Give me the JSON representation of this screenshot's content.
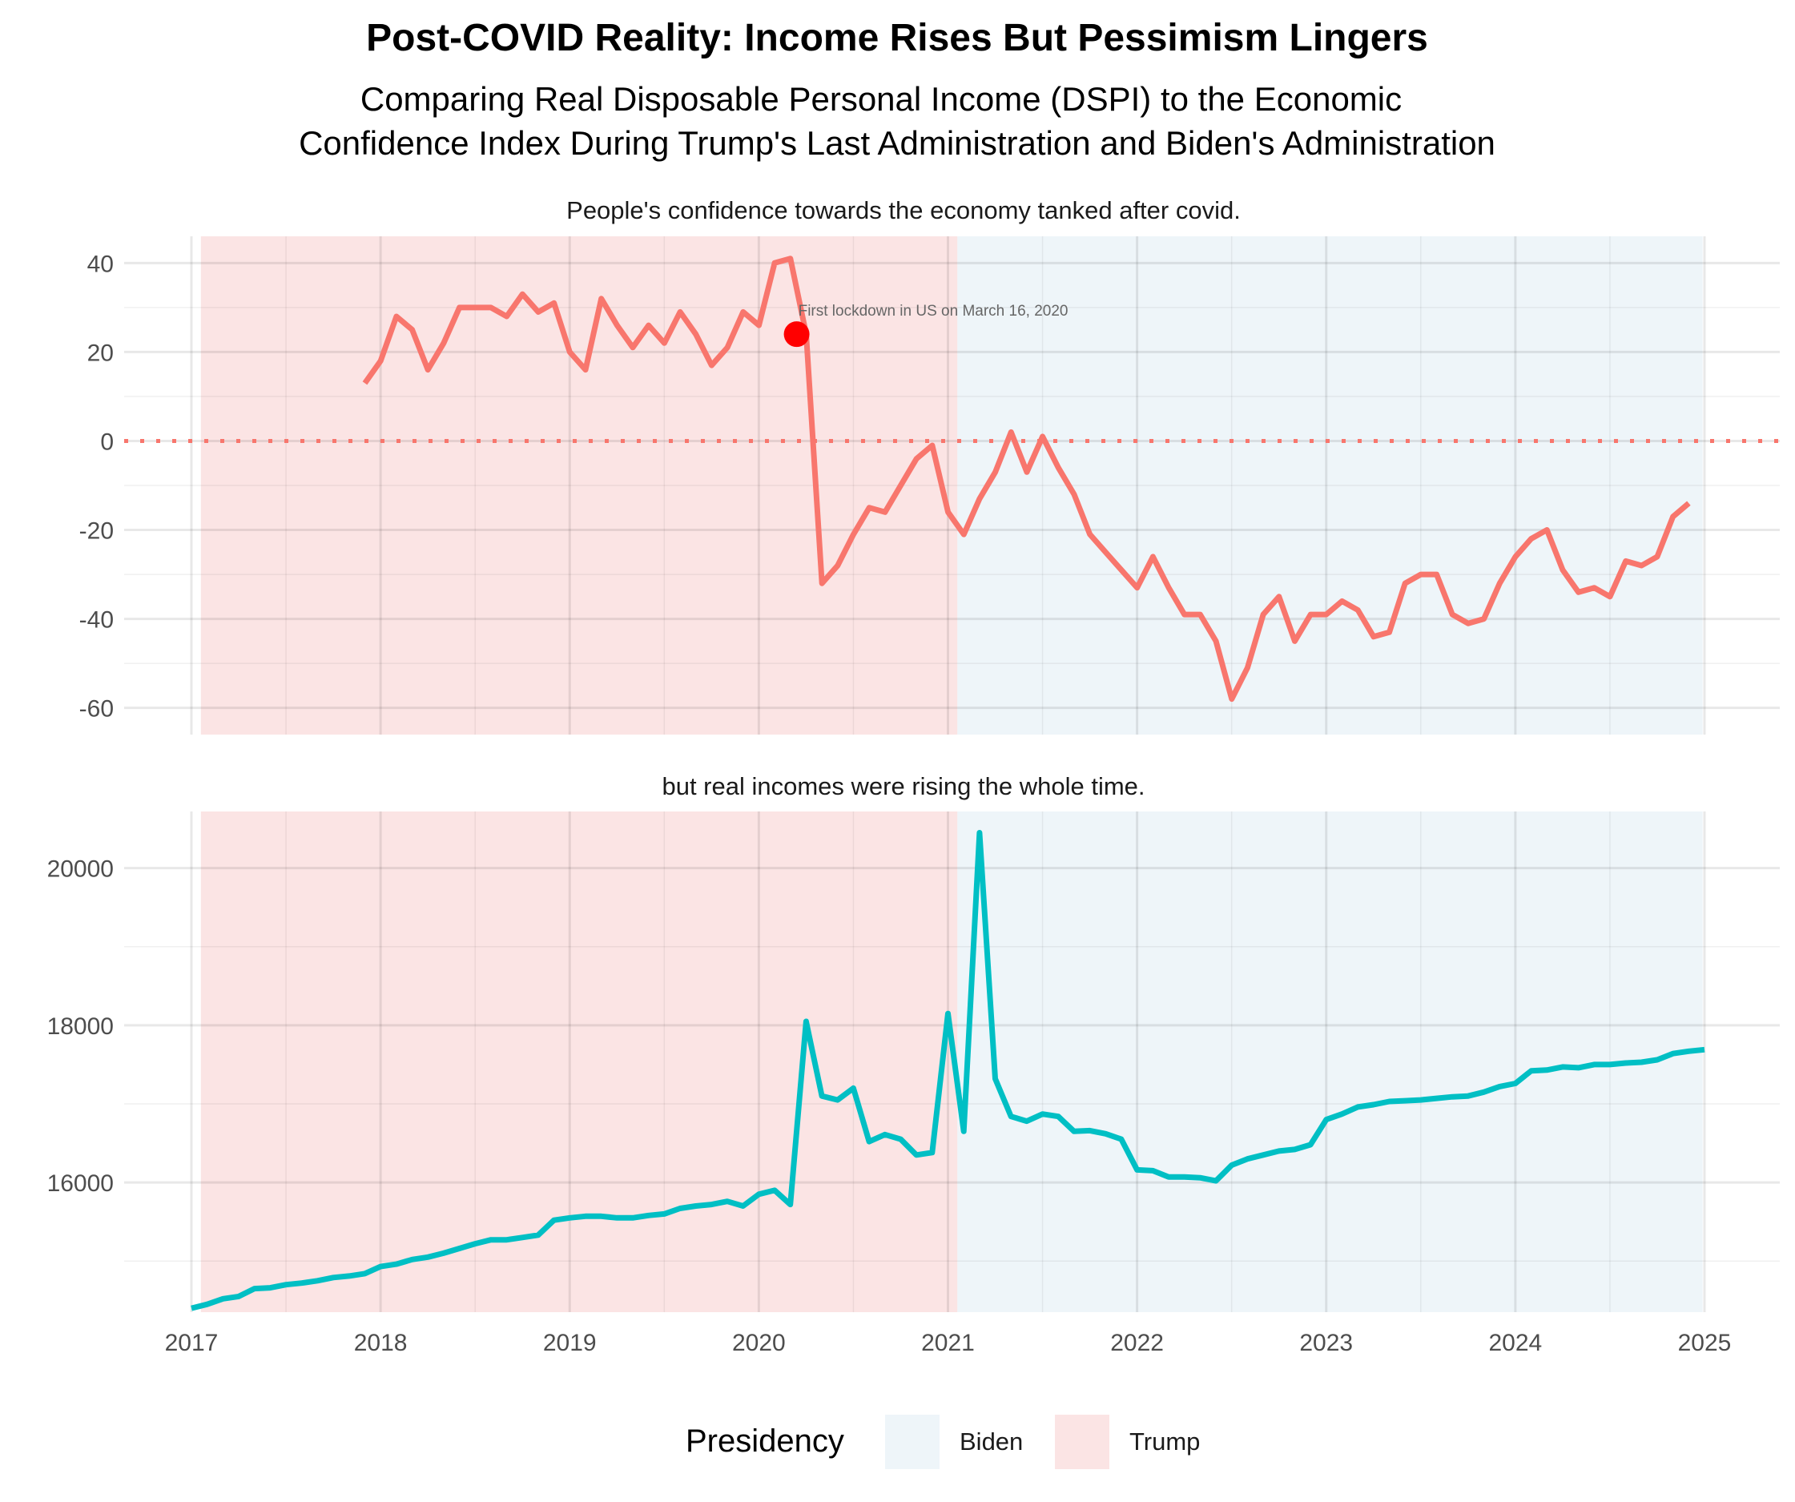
{
  "chart_data": {
    "type": "line",
    "title": "Post-COVID Reality: Income Rises But Pessimism Lingers",
    "subtitle_line1": "Comparing Real Disposable Personal Income (DSPI) to the Economic",
    "subtitle_line2": "Confidence Index During Trump's Last Administration and Biden's Administration",
    "x_ticks": [
      "2017",
      "2018",
      "2019",
      "2020",
      "2021",
      "2022",
      "2023",
      "2024",
      "2025"
    ],
    "xlim": [
      2017,
      2025
    ],
    "regions": [
      {
        "name": "Trump",
        "from": 2017.05,
        "to": 2021.05,
        "color": "#fbe4e4"
      },
      {
        "name": "Biden",
        "from": 2021.05,
        "to": 2024.99,
        "color": "#eef5f9"
      }
    ],
    "legend": {
      "title": "Presidency",
      "position": "bottom",
      "entries": [
        {
          "label": "Biden",
          "color": "#eef5f9"
        },
        {
          "label": "Trump",
          "color": "#fbe4e4"
        }
      ]
    },
    "panels": [
      {
        "id": "confidence",
        "title": "People's confidence towards the economy tanked after covid.",
        "color": "#f8766d",
        "ylim": [
          -66,
          46
        ],
        "y_ticks": [
          40,
          20,
          0,
          -20,
          -40,
          -60
        ],
        "y_tick_labels": [
          "40",
          "20",
          "0",
          "-20",
          "-40",
          "-60"
        ],
        "reference_line": 0,
        "x_start": 2017.917,
        "values": [
          13,
          18,
          28,
          25,
          16,
          22,
          30,
          30,
          30,
          28,
          33,
          29,
          31,
          20,
          16,
          32,
          26,
          21,
          26,
          22,
          29,
          24,
          17,
          21,
          29,
          26,
          40,
          41,
          24,
          -32,
          -28,
          -21,
          -15,
          -16,
          -10,
          -4,
          -1,
          -16,
          -21,
          -13,
          -7,
          2,
          -7,
          1,
          -6,
          -12,
          -21,
          -25,
          -29,
          -33,
          -26,
          -33,
          -39,
          -39,
          -45,
          -58,
          -51,
          -39,
          -35,
          -45,
          -39,
          -39,
          -36,
          -38,
          -44,
          -43,
          -32,
          -30,
          -30,
          -39,
          -41,
          -40,
          -32,
          -26,
          -22,
          -20,
          -29,
          -34,
          -33,
          -35,
          -27,
          -28,
          -26,
          -17,
          -14
        ],
        "annotation": {
          "x": 2020.2,
          "y": 24,
          "text": "First lockdown in US on March 16, 2020",
          "marker_color": "#ff0000"
        }
      },
      {
        "id": "income",
        "title": "but real incomes were rising the whole time.",
        "color": "#00bfc4",
        "ylim": [
          14350,
          20720
        ],
        "y_ticks": [
          20000,
          18000,
          16000
        ],
        "y_tick_labels": [
          "20000",
          "18000",
          "16000"
        ],
        "x_start": 2017.0,
        "values": [
          14400,
          14450,
          14520,
          14550,
          14650,
          14660,
          14700,
          14720,
          14750,
          14790,
          14810,
          14840,
          14930,
          14960,
          15020,
          15050,
          15100,
          15160,
          15220,
          15270,
          15270,
          15300,
          15330,
          15520,
          15550,
          15570,
          15570,
          15550,
          15550,
          15580,
          15600,
          15670,
          15700,
          15720,
          15760,
          15700,
          15850,
          15900,
          15720,
          18050,
          17100,
          17050,
          17200,
          16520,
          16610,
          16550,
          16350,
          16380,
          18150,
          16650,
          20450,
          17320,
          16840,
          16780,
          16870,
          16840,
          16650,
          16660,
          16620,
          16550,
          16160,
          16150,
          16070,
          16070,
          16060,
          16020,
          16220,
          16300,
          16350,
          16400,
          16420,
          16480,
          16800,
          16870,
          16960,
          16990,
          17030,
          17040,
          17050,
          17070,
          17090,
          17100,
          17150,
          17220,
          17260,
          17420,
          17430,
          17470,
          17460,
          17500,
          17500,
          17520,
          17530,
          17560,
          17640,
          17670,
          17690
        ]
      }
    ]
  }
}
